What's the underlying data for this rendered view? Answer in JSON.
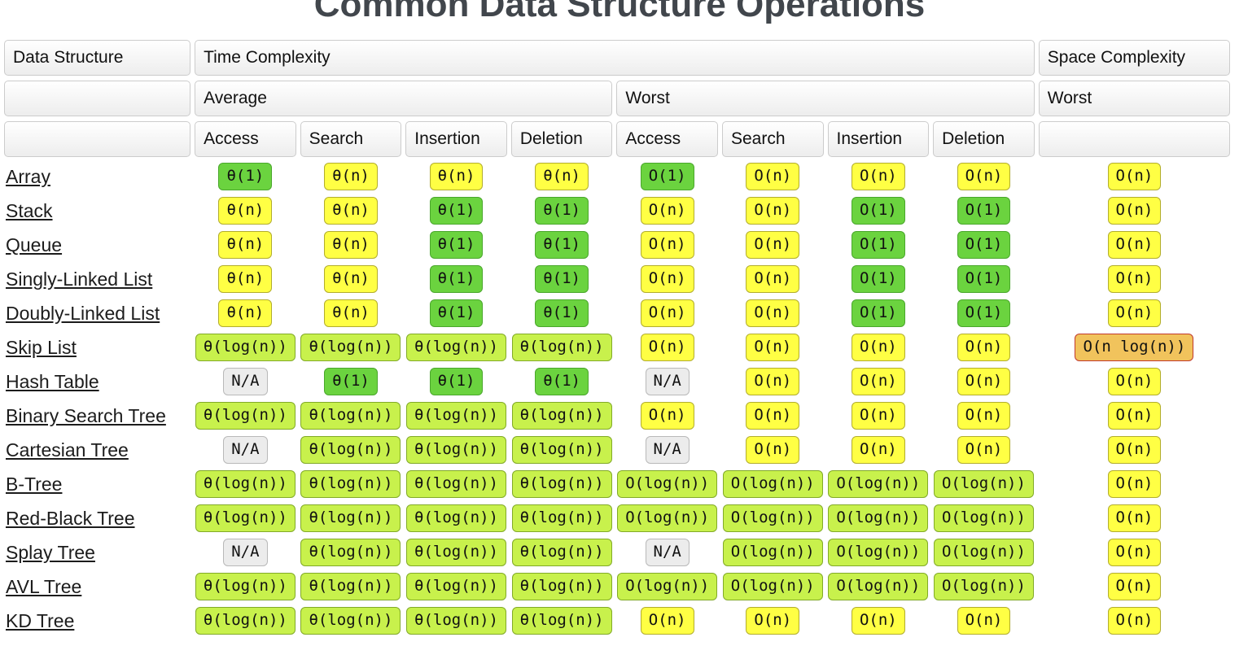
{
  "title": "Common Data Structure Operations",
  "palette": {
    "constant_green": "#6bd33f",
    "log_lime": "#c8f14c",
    "linear_yellow": "#ffff44",
    "na_gray": "#ececec",
    "nlogn_orange": "#f1c35c",
    "nlogn_border_red": "#c0392b"
  },
  "table": {
    "header": {
      "data_structure": "Data Structure",
      "time_complexity": "Time Complexity",
      "space_complexity": "Space Complexity",
      "average": "Average",
      "worst": "Worst",
      "space_worst": "Worst",
      "avg_ops": [
        "Access",
        "Search",
        "Insertion",
        "Deletion"
      ],
      "worst_ops": [
        "Access",
        "Search",
        "Insertion",
        "Deletion"
      ]
    },
    "rows": [
      {
        "name": "Array",
        "cells": [
          {
            "t": "θ(1)",
            "c": "green"
          },
          {
            "t": "θ(n)",
            "c": "yellow"
          },
          {
            "t": "θ(n)",
            "c": "yellow"
          },
          {
            "t": "θ(n)",
            "c": "yellow"
          },
          {
            "t": "O(1)",
            "c": "green"
          },
          {
            "t": "O(n)",
            "c": "yellow"
          },
          {
            "t": "O(n)",
            "c": "yellow"
          },
          {
            "t": "O(n)",
            "c": "yellow"
          },
          {
            "t": "O(n)",
            "c": "yellow"
          }
        ]
      },
      {
        "name": "Stack",
        "cells": [
          {
            "t": "θ(n)",
            "c": "yellow"
          },
          {
            "t": "θ(n)",
            "c": "yellow"
          },
          {
            "t": "θ(1)",
            "c": "green"
          },
          {
            "t": "θ(1)",
            "c": "green"
          },
          {
            "t": "O(n)",
            "c": "yellow"
          },
          {
            "t": "O(n)",
            "c": "yellow"
          },
          {
            "t": "O(1)",
            "c": "green"
          },
          {
            "t": "O(1)",
            "c": "green"
          },
          {
            "t": "O(n)",
            "c": "yellow"
          }
        ]
      },
      {
        "name": "Queue",
        "cells": [
          {
            "t": "θ(n)",
            "c": "yellow"
          },
          {
            "t": "θ(n)",
            "c": "yellow"
          },
          {
            "t": "θ(1)",
            "c": "green"
          },
          {
            "t": "θ(1)",
            "c": "green"
          },
          {
            "t": "O(n)",
            "c": "yellow"
          },
          {
            "t": "O(n)",
            "c": "yellow"
          },
          {
            "t": "O(1)",
            "c": "green"
          },
          {
            "t": "O(1)",
            "c": "green"
          },
          {
            "t": "O(n)",
            "c": "yellow"
          }
        ]
      },
      {
        "name": "Singly-Linked List",
        "cells": [
          {
            "t": "θ(n)",
            "c": "yellow"
          },
          {
            "t": "θ(n)",
            "c": "yellow"
          },
          {
            "t": "θ(1)",
            "c": "green"
          },
          {
            "t": "θ(1)",
            "c": "green"
          },
          {
            "t": "O(n)",
            "c": "yellow"
          },
          {
            "t": "O(n)",
            "c": "yellow"
          },
          {
            "t": "O(1)",
            "c": "green"
          },
          {
            "t": "O(1)",
            "c": "green"
          },
          {
            "t": "O(n)",
            "c": "yellow"
          }
        ]
      },
      {
        "name": "Doubly-Linked List",
        "cells": [
          {
            "t": "θ(n)",
            "c": "yellow"
          },
          {
            "t": "θ(n)",
            "c": "yellow"
          },
          {
            "t": "θ(1)",
            "c": "green"
          },
          {
            "t": "θ(1)",
            "c": "green"
          },
          {
            "t": "O(n)",
            "c": "yellow"
          },
          {
            "t": "O(n)",
            "c": "yellow"
          },
          {
            "t": "O(1)",
            "c": "green"
          },
          {
            "t": "O(1)",
            "c": "green"
          },
          {
            "t": "O(n)",
            "c": "yellow"
          }
        ]
      },
      {
        "name": "Skip List",
        "cells": [
          {
            "t": "θ(log(n))",
            "c": "lime"
          },
          {
            "t": "θ(log(n))",
            "c": "lime"
          },
          {
            "t": "θ(log(n))",
            "c": "lime"
          },
          {
            "t": "θ(log(n))",
            "c": "lime"
          },
          {
            "t": "O(n)",
            "c": "yellow"
          },
          {
            "t": "O(n)",
            "c": "yellow"
          },
          {
            "t": "O(n)",
            "c": "yellow"
          },
          {
            "t": "O(n)",
            "c": "yellow"
          },
          {
            "t": "O(n log(n))",
            "c": "orange"
          }
        ]
      },
      {
        "name": "Hash Table",
        "cells": [
          {
            "t": "N/A",
            "c": "gray"
          },
          {
            "t": "θ(1)",
            "c": "green"
          },
          {
            "t": "θ(1)",
            "c": "green"
          },
          {
            "t": "θ(1)",
            "c": "green"
          },
          {
            "t": "N/A",
            "c": "gray"
          },
          {
            "t": "O(n)",
            "c": "yellow"
          },
          {
            "t": "O(n)",
            "c": "yellow"
          },
          {
            "t": "O(n)",
            "c": "yellow"
          },
          {
            "t": "O(n)",
            "c": "yellow"
          }
        ]
      },
      {
        "name": "Binary Search Tree",
        "cells": [
          {
            "t": "θ(log(n))",
            "c": "lime"
          },
          {
            "t": "θ(log(n))",
            "c": "lime"
          },
          {
            "t": "θ(log(n))",
            "c": "lime"
          },
          {
            "t": "θ(log(n))",
            "c": "lime"
          },
          {
            "t": "O(n)",
            "c": "yellow"
          },
          {
            "t": "O(n)",
            "c": "yellow"
          },
          {
            "t": "O(n)",
            "c": "yellow"
          },
          {
            "t": "O(n)",
            "c": "yellow"
          },
          {
            "t": "O(n)",
            "c": "yellow"
          }
        ]
      },
      {
        "name": "Cartesian Tree",
        "cells": [
          {
            "t": "N/A",
            "c": "gray"
          },
          {
            "t": "θ(log(n))",
            "c": "lime"
          },
          {
            "t": "θ(log(n))",
            "c": "lime"
          },
          {
            "t": "θ(log(n))",
            "c": "lime"
          },
          {
            "t": "N/A",
            "c": "gray"
          },
          {
            "t": "O(n)",
            "c": "yellow"
          },
          {
            "t": "O(n)",
            "c": "yellow"
          },
          {
            "t": "O(n)",
            "c": "yellow"
          },
          {
            "t": "O(n)",
            "c": "yellow"
          }
        ]
      },
      {
        "name": "B-Tree",
        "cells": [
          {
            "t": "θ(log(n))",
            "c": "lime"
          },
          {
            "t": "θ(log(n))",
            "c": "lime"
          },
          {
            "t": "θ(log(n))",
            "c": "lime"
          },
          {
            "t": "θ(log(n))",
            "c": "lime"
          },
          {
            "t": "O(log(n))",
            "c": "lime"
          },
          {
            "t": "O(log(n))",
            "c": "lime"
          },
          {
            "t": "O(log(n))",
            "c": "lime"
          },
          {
            "t": "O(log(n))",
            "c": "lime"
          },
          {
            "t": "O(n)",
            "c": "yellow"
          }
        ]
      },
      {
        "name": "Red-Black Tree",
        "cells": [
          {
            "t": "θ(log(n))",
            "c": "lime"
          },
          {
            "t": "θ(log(n))",
            "c": "lime"
          },
          {
            "t": "θ(log(n))",
            "c": "lime"
          },
          {
            "t": "θ(log(n))",
            "c": "lime"
          },
          {
            "t": "O(log(n))",
            "c": "lime"
          },
          {
            "t": "O(log(n))",
            "c": "lime"
          },
          {
            "t": "O(log(n))",
            "c": "lime"
          },
          {
            "t": "O(log(n))",
            "c": "lime"
          },
          {
            "t": "O(n)",
            "c": "yellow"
          }
        ]
      },
      {
        "name": "Splay Tree",
        "cells": [
          {
            "t": "N/A",
            "c": "gray"
          },
          {
            "t": "θ(log(n))",
            "c": "lime"
          },
          {
            "t": "θ(log(n))",
            "c": "lime"
          },
          {
            "t": "θ(log(n))",
            "c": "lime"
          },
          {
            "t": "N/A",
            "c": "gray"
          },
          {
            "t": "O(log(n))",
            "c": "lime"
          },
          {
            "t": "O(log(n))",
            "c": "lime"
          },
          {
            "t": "O(log(n))",
            "c": "lime"
          },
          {
            "t": "O(n)",
            "c": "yellow"
          }
        ]
      },
      {
        "name": "AVL Tree",
        "cells": [
          {
            "t": "θ(log(n))",
            "c": "lime"
          },
          {
            "t": "θ(log(n))",
            "c": "lime"
          },
          {
            "t": "θ(log(n))",
            "c": "lime"
          },
          {
            "t": "θ(log(n))",
            "c": "lime"
          },
          {
            "t": "O(log(n))",
            "c": "lime"
          },
          {
            "t": "O(log(n))",
            "c": "lime"
          },
          {
            "t": "O(log(n))",
            "c": "lime"
          },
          {
            "t": "O(log(n))",
            "c": "lime"
          },
          {
            "t": "O(n)",
            "c": "yellow"
          }
        ]
      },
      {
        "name": "KD Tree",
        "cells": [
          {
            "t": "θ(log(n))",
            "c": "lime"
          },
          {
            "t": "θ(log(n))",
            "c": "lime"
          },
          {
            "t": "θ(log(n))",
            "c": "lime"
          },
          {
            "t": "θ(log(n))",
            "c": "lime"
          },
          {
            "t": "O(n)",
            "c": "yellow"
          },
          {
            "t": "O(n)",
            "c": "yellow"
          },
          {
            "t": "O(n)",
            "c": "yellow"
          },
          {
            "t": "O(n)",
            "c": "yellow"
          },
          {
            "t": "O(n)",
            "c": "yellow"
          }
        ]
      }
    ]
  }
}
